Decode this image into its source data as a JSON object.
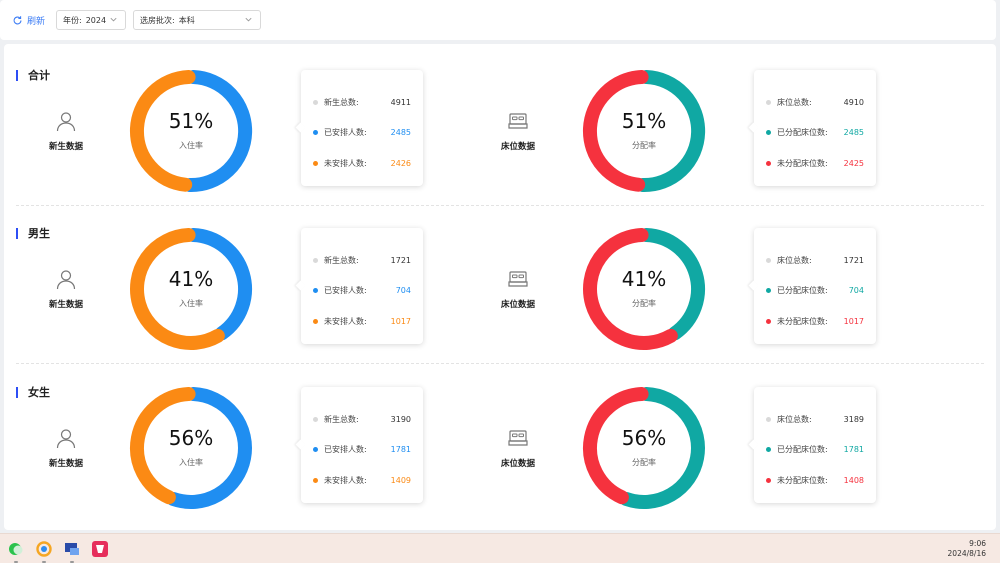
{
  "toolbar": {
    "refresh_label": "刷新",
    "year_label": "年份:",
    "year_value": "2024",
    "batch_label": "选房批次:",
    "batch_value": "本科"
  },
  "sections": [
    {
      "title": "合计",
      "students": {
        "label": "新生数据",
        "percent_text": "51%",
        "rate_label": "入住率",
        "fraction": 0.51,
        "total_label": "新生总数:",
        "total_value": "4911",
        "done_label": "已安排人数:",
        "done_value": "2485",
        "todo_label": "未安排人数:",
        "todo_value": "2426"
      },
      "beds": {
        "label": "床位数据",
        "percent_text": "51%",
        "rate_label": "分配率",
        "fraction": 0.51,
        "total_label": "床位总数:",
        "total_value": "4910",
        "done_label": "已分配床位数:",
        "done_value": "2485",
        "todo_label": "未分配床位数:",
        "todo_value": "2425"
      }
    },
    {
      "title": "男生",
      "students": {
        "label": "新生数据",
        "percent_text": "41%",
        "rate_label": "入住率",
        "fraction": 0.41,
        "total_label": "新生总数:",
        "total_value": "1721",
        "done_label": "已安排人数:",
        "done_value": "704",
        "todo_label": "未安排人数:",
        "todo_value": "1017"
      },
      "beds": {
        "label": "床位数据",
        "percent_text": "41%",
        "rate_label": "分配率",
        "fraction": 0.41,
        "total_label": "床位总数:",
        "total_value": "1721",
        "done_label": "已分配床位数:",
        "done_value": "704",
        "todo_label": "未分配床位数:",
        "todo_value": "1017"
      }
    },
    {
      "title": "女生",
      "students": {
        "label": "新生数据",
        "percent_text": "56%",
        "rate_label": "入住率",
        "fraction": 0.56,
        "total_label": "新生总数:",
        "total_value": "3190",
        "done_label": "已安排人数:",
        "done_value": "1781",
        "todo_label": "未安排人数:",
        "todo_value": "1409"
      },
      "beds": {
        "label": "床位数据",
        "percent_text": "56%",
        "rate_label": "分配率",
        "fraction": 0.56,
        "total_label": "床位总数:",
        "total_value": "3189",
        "done_label": "已分配床位数:",
        "done_value": "1781",
        "todo_label": "未分配床位数:",
        "todo_value": "1408"
      }
    }
  ],
  "colors": {
    "student_done": "#1f8ef1",
    "student_todo": "#fb8a14",
    "bed_done": "#10a8a3",
    "bed_todo": "#f5323e",
    "total_dot": "#d9d9d9",
    "accent": "#3b7cf5"
  },
  "icons": {
    "refresh": "refresh-icon",
    "select_arrow": "chevron-down-icon",
    "students": "user-icon",
    "beds": "bed-icon"
  },
  "taskbar": {
    "apps": [
      "wechat-app-icon",
      "browser-app-icon",
      "remote-desktop-app-icon",
      "media-app-icon"
    ],
    "time": "9:06",
    "date": "2024/8/16"
  }
}
